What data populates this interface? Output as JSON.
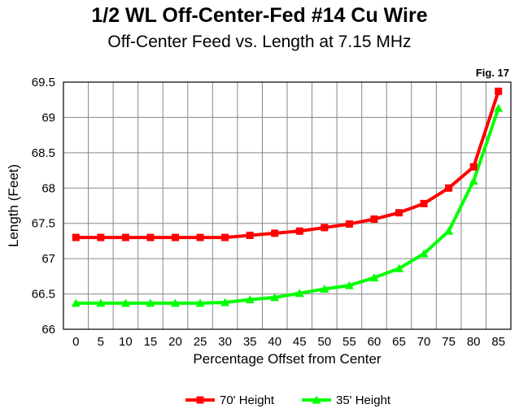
{
  "chart_data": {
    "type": "line",
    "title": "1/2 WL Off-Center-Fed #14 Cu Wire",
    "subtitle": "Off-Center Feed vs. Length at 7.15 MHz",
    "figure_label": "Fig. 17",
    "xlabel": "Percentage Offset from Center",
    "ylabel": "Length (Feet)",
    "x": [
      0,
      5,
      10,
      15,
      20,
      25,
      30,
      35,
      40,
      45,
      50,
      55,
      60,
      65,
      70,
      75,
      80,
      85
    ],
    "ylim": [
      66,
      69.5
    ],
    "yticks": [
      "66",
      "66.5",
      "67",
      "67.5",
      "68",
      "68.5",
      "69",
      "69.5"
    ],
    "grid": true,
    "legend_position": "bottom",
    "series": [
      {
        "name": "70' Height",
        "color": "#ff0000",
        "marker": "square",
        "values": [
          67.3,
          67.3,
          67.3,
          67.3,
          67.3,
          67.3,
          67.3,
          67.33,
          67.36,
          67.39,
          67.44,
          67.49,
          67.56,
          67.65,
          67.78,
          68.0,
          68.3,
          69.37
        ]
      },
      {
        "name": "35' Height",
        "color": "#00ff00",
        "marker": "triangle",
        "values": [
          66.37,
          66.37,
          66.37,
          66.37,
          66.37,
          66.37,
          66.38,
          66.42,
          66.45,
          66.51,
          66.57,
          66.62,
          66.73,
          66.86,
          67.07,
          67.39,
          68.1,
          69.13
        ]
      }
    ]
  }
}
